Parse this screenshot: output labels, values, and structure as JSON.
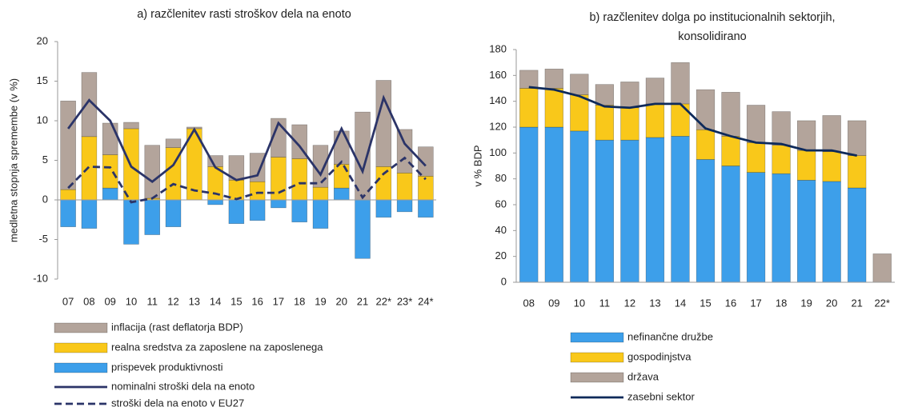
{
  "chart_data": [
    {
      "type": "bar",
      "title": "a) razčlenitev rasti stroškov dela na enoto",
      "y_label": "medletna stopnja spremembe (v %)",
      "categories": [
        "07",
        "08",
        "09",
        "10",
        "11",
        "12",
        "13",
        "14",
        "15",
        "16",
        "17",
        "18",
        "19",
        "20",
        "21",
        "22*",
        "23*",
        "24*"
      ],
      "ylim": [
        -10,
        20
      ],
      "yticks": [
        -10,
        -5,
        0,
        5,
        10,
        15,
        20
      ],
      "series": [
        {
          "name": "inflacija (rast deflatorja BDP)",
          "kind": "bar",
          "color": "#b3a49b",
          "values": [
            11.2,
            8.1,
            4.0,
            0.8,
            6.7,
            1.1,
            0.2,
            1.4,
            3.1,
            3.6,
            4.9,
            4.3,
            5.3,
            4.2,
            11.1,
            10.9,
            5.5,
            3.7
          ]
        },
        {
          "name": "realna sredstva za zaposlene na zaposlenega",
          "kind": "bar",
          "color": "#f9c81a",
          "values": [
            1.3,
            8.0,
            4.2,
            9.0,
            0.2,
            6.6,
            9.0,
            4.2,
            2.5,
            2.3,
            5.4,
            5.2,
            1.6,
            3.0,
            0.0,
            4.2,
            3.4,
            3.0
          ]
        },
        {
          "name": "prispevek produktivnosti",
          "kind": "bar",
          "color": "#3d9fea",
          "values": [
            -3.4,
            -3.6,
            1.5,
            -5.6,
            -4.4,
            -3.4,
            0.0,
            -0.6,
            -3.0,
            -2.6,
            -1.0,
            -2.8,
            -3.6,
            1.5,
            -7.4,
            -2.2,
            -1.5,
            -2.2
          ]
        },
        {
          "name": "nominalni stroški dela na enoto",
          "kind": "line",
          "color": "#2b3468",
          "dashed": false,
          "values": [
            9.0,
            12.6,
            10.0,
            4.2,
            2.3,
            4.4,
            8.9,
            4.1,
            2.5,
            3.1,
            9.7,
            6.8,
            3.2,
            9.0,
            3.6,
            12.9,
            7.1,
            4.3
          ]
        },
        {
          "name": "stroški dela na enoto v EU27",
          "kind": "line",
          "color": "#2b3468",
          "dashed": true,
          "values": [
            1.5,
            4.2,
            4.1,
            -0.3,
            0.2,
            2.0,
            1.2,
            0.8,
            0.1,
            0.9,
            0.9,
            2.1,
            2.1,
            4.8,
            0.3,
            3.3,
            5.3,
            2.6
          ]
        }
      ]
    },
    {
      "type": "bar",
      "title": [
        "b) razčlenitev dolga po institucionalnih sektorjih,",
        "konsolidirano"
      ],
      "y_label": "v % BDP",
      "categories": [
        "08",
        "09",
        "10",
        "11",
        "12",
        "13",
        "14",
        "15",
        "16",
        "17",
        "18",
        "19",
        "20",
        "21",
        "22*"
      ],
      "ylim": [
        0,
        180
      ],
      "yticks": [
        0,
        20,
        40,
        60,
        80,
        100,
        120,
        140,
        160,
        180
      ],
      "series": [
        {
          "name": "nefinančne družbe",
          "kind": "bar",
          "color": "#3d9fea",
          "values": [
            120,
            120,
            117,
            110,
            110,
            112,
            113,
            95,
            90,
            85,
            84,
            79,
            78,
            73,
            null
          ]
        },
        {
          "name": "gospodinjstva",
          "kind": "bar",
          "color": "#f9c81a",
          "values": [
            30,
            30,
            28,
            27,
            25,
            26,
            25,
            23,
            23,
            23,
            22,
            23,
            23,
            25,
            null
          ]
        },
        {
          "name": "država",
          "kind": "bar",
          "color": "#b3a49b",
          "values": [
            14,
            15,
            16,
            16,
            20,
            20,
            32,
            31,
            34,
            29,
            26,
            23,
            28,
            27,
            22
          ]
        },
        {
          "name": "zasebni sektor",
          "kind": "line",
          "color": "#0e2a5a",
          "dashed": false,
          "values": [
            151,
            149,
            144,
            136,
            135,
            138,
            138,
            119,
            113,
            108,
            107,
            102,
            102,
            98,
            null
          ]
        }
      ]
    }
  ]
}
